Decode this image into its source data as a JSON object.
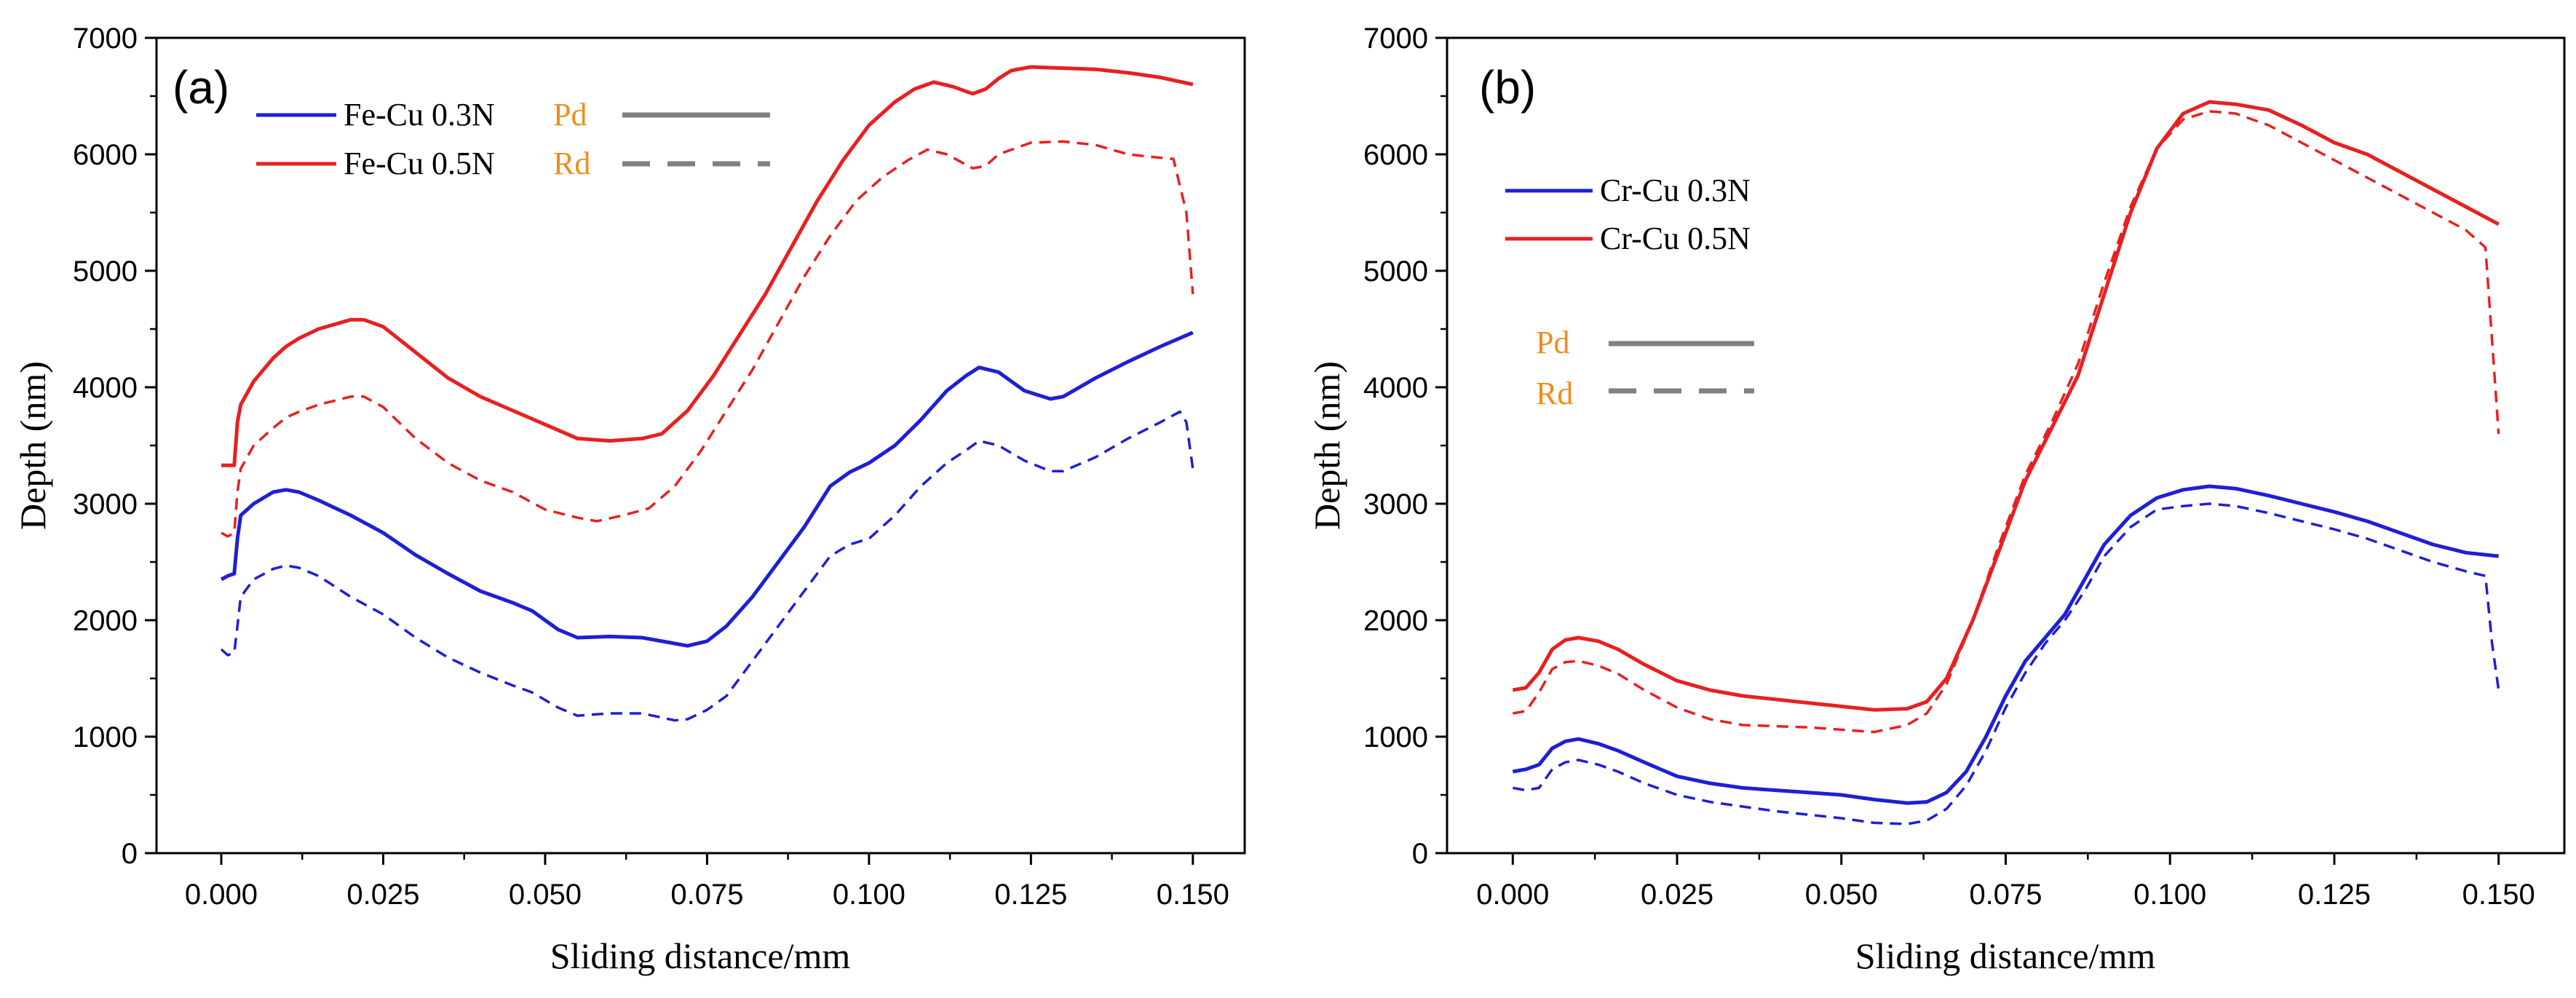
{
  "chart_data": [
    {
      "type": "line",
      "panel_label": "(a)",
      "xlabel": "Sliding distance/mm",
      "ylabel": "Depth (nm)",
      "xlim": [
        -0.01,
        0.158
      ],
      "ylim": [
        0,
        7000
      ],
      "xticks": [
        0.0,
        0.025,
        0.05,
        0.075,
        0.1,
        0.125,
        0.15
      ],
      "xtick_labels": [
        "0.000",
        "0.025",
        "0.050",
        "0.075",
        "0.100",
        "0.125",
        "0.150"
      ],
      "yticks": [
        0,
        1000,
        2000,
        3000,
        4000,
        5000,
        6000,
        7000
      ],
      "ytick_labels": [
        "0",
        "1000",
        "2000",
        "3000",
        "4000",
        "5000",
        "6000",
        "7000"
      ],
      "legend": {
        "position": "top-left",
        "entries": [
          {
            "label": "Fe-Cu 0.3N",
            "color": "#1f1fd6"
          },
          {
            "label": "Fe-Cu 0.5N",
            "color": "#e82020"
          }
        ],
        "styles": [
          {
            "label": "Pd",
            "dash": "solid",
            "color": "#808080"
          },
          {
            "label": "Rd",
            "dash": "dashed",
            "color": "#808080"
          }
        ]
      },
      "series": [
        {
          "name": "Fe-Cu 0.3N Pd",
          "color": "#1f1fd6",
          "dash": "solid",
          "x": [
            0,
            0.001,
            0.002,
            0.0025,
            0.003,
            0.005,
            0.008,
            0.01,
            0.012,
            0.015,
            0.02,
            0.025,
            0.03,
            0.035,
            0.04,
            0.045,
            0.048,
            0.052,
            0.055,
            0.06,
            0.065,
            0.07,
            0.072,
            0.075,
            0.078,
            0.082,
            0.086,
            0.09,
            0.094,
            0.097,
            0.1,
            0.104,
            0.108,
            0.112,
            0.115,
            0.117,
            0.12,
            0.124,
            0.128,
            0.13,
            0.135,
            0.14,
            0.145,
            0.15
          ],
          "y": [
            2350,
            2380,
            2400,
            2700,
            2900,
            3000,
            3100,
            3120,
            3100,
            3030,
            2900,
            2750,
            2560,
            2400,
            2250,
            2150,
            2080,
            1920,
            1850,
            1860,
            1850,
            1800,
            1780,
            1820,
            1950,
            2200,
            2500,
            2800,
            3150,
            3270,
            3350,
            3500,
            3720,
            3970,
            4100,
            4170,
            4130,
            3970,
            3900,
            3920,
            4080,
            4220,
            4350,
            4470
          ]
        },
        {
          "name": "Fe-Cu 0.3N Rd",
          "color": "#1f1fd6",
          "dash": "dashed",
          "x": [
            0,
            0.001,
            0.002,
            0.0025,
            0.003,
            0.005,
            0.008,
            0.01,
            0.012,
            0.015,
            0.02,
            0.025,
            0.03,
            0.035,
            0.04,
            0.045,
            0.048,
            0.052,
            0.055,
            0.06,
            0.065,
            0.07,
            0.072,
            0.075,
            0.078,
            0.082,
            0.086,
            0.09,
            0.094,
            0.097,
            0.1,
            0.104,
            0.108,
            0.112,
            0.115,
            0.117,
            0.12,
            0.124,
            0.128,
            0.13,
            0.135,
            0.14,
            0.145,
            0.148,
            0.149,
            0.15
          ],
          "y": [
            1750,
            1700,
            1720,
            1950,
            2200,
            2350,
            2440,
            2470,
            2450,
            2380,
            2200,
            2050,
            1850,
            1680,
            1550,
            1440,
            1380,
            1250,
            1180,
            1200,
            1200,
            1140,
            1150,
            1230,
            1350,
            1650,
            1950,
            2250,
            2550,
            2650,
            2700,
            2900,
            3150,
            3350,
            3460,
            3540,
            3500,
            3370,
            3280,
            3280,
            3400,
            3560,
            3700,
            3790,
            3700,
            3300
          ]
        },
        {
          "name": "Fe-Cu 0.5N Pd",
          "color": "#e82020",
          "dash": "solid",
          "x": [
            0,
            0.001,
            0.002,
            0.0025,
            0.003,
            0.005,
            0.008,
            0.01,
            0.012,
            0.015,
            0.02,
            0.022,
            0.025,
            0.03,
            0.035,
            0.04,
            0.045,
            0.05,
            0.055,
            0.06,
            0.065,
            0.068,
            0.072,
            0.076,
            0.08,
            0.084,
            0.088,
            0.092,
            0.096,
            0.1,
            0.104,
            0.107,
            0.11,
            0.113,
            0.116,
            0.118,
            0.12,
            0.122,
            0.125,
            0.13,
            0.135,
            0.14,
            0.145,
            0.15
          ],
          "y": [
            3330,
            3330,
            3330,
            3700,
            3850,
            4050,
            4250,
            4350,
            4420,
            4500,
            4580,
            4580,
            4520,
            4300,
            4080,
            3920,
            3800,
            3680,
            3560,
            3540,
            3560,
            3600,
            3800,
            4100,
            4450,
            4800,
            5200,
            5600,
            5950,
            6250,
            6450,
            6560,
            6620,
            6580,
            6520,
            6560,
            6650,
            6720,
            6750,
            6740,
            6730,
            6700,
            6660,
            6600
          ]
        },
        {
          "name": "Fe-Cu 0.5N Rd",
          "color": "#e82020",
          "dash": "dashed",
          "x": [
            0,
            0.001,
            0.002,
            0.0025,
            0.003,
            0.005,
            0.008,
            0.01,
            0.012,
            0.015,
            0.02,
            0.022,
            0.025,
            0.03,
            0.035,
            0.04,
            0.045,
            0.05,
            0.055,
            0.058,
            0.062,
            0.066,
            0.07,
            0.074,
            0.078,
            0.082,
            0.086,
            0.09,
            0.094,
            0.098,
            0.102,
            0.106,
            0.109,
            0.112,
            0.116,
            0.118,
            0.12,
            0.125,
            0.13,
            0.135,
            0.14,
            0.145,
            0.147,
            0.149,
            0.15
          ],
          "y": [
            2750,
            2720,
            2750,
            3100,
            3300,
            3500,
            3650,
            3740,
            3790,
            3850,
            3920,
            3920,
            3830,
            3560,
            3350,
            3200,
            3100,
            2950,
            2880,
            2850,
            2900,
            2960,
            3150,
            3450,
            3800,
            4150,
            4550,
            4950,
            5300,
            5600,
            5800,
            5950,
            6040,
            6000,
            5880,
            5900,
            6000,
            6100,
            6110,
            6080,
            6000,
            5970,
            5960,
            5500,
            4800
          ]
        }
      ]
    },
    {
      "type": "line",
      "panel_label": "(b)",
      "xlabel": "Sliding distance/mm",
      "ylabel": "Depth (nm)",
      "xlim": [
        -0.01,
        0.16
      ],
      "ylim": [
        0,
        7000
      ],
      "xticks": [
        0.0,
        0.025,
        0.05,
        0.075,
        0.1,
        0.125,
        0.15
      ],
      "xtick_labels": [
        "0.000",
        "0.025",
        "0.050",
        "0.075",
        "0.100",
        "0.125",
        "0.150"
      ],
      "yticks": [
        0,
        1000,
        2000,
        3000,
        4000,
        5000,
        6000,
        7000
      ],
      "ytick_labels": [
        "0",
        "1000",
        "2000",
        "3000",
        "4000",
        "5000",
        "6000",
        "7000"
      ],
      "legend": {
        "position": "top-left",
        "entries": [
          {
            "label": "Cr-Cu 0.3N",
            "color": "#1f1fd6"
          },
          {
            "label": "Cr-Cu 0.5N",
            "color": "#e82020"
          }
        ],
        "styles": [
          {
            "label": "Pd",
            "dash": "solid",
            "color": "#808080"
          },
          {
            "label": "Rd",
            "dash": "dashed",
            "color": "#808080"
          }
        ]
      },
      "series": [
        {
          "name": "Cr-Cu 0.3N Pd",
          "color": "#1f1fd6",
          "dash": "solid",
          "x": [
            0,
            0.002,
            0.004,
            0.006,
            0.008,
            0.01,
            0.013,
            0.016,
            0.02,
            0.025,
            0.03,
            0.035,
            0.04,
            0.045,
            0.05,
            0.055,
            0.06,
            0.063,
            0.066,
            0.069,
            0.072,
            0.075,
            0.078,
            0.081,
            0.084,
            0.087,
            0.09,
            0.094,
            0.098,
            0.102,
            0.106,
            0.11,
            0.115,
            0.12,
            0.125,
            0.13,
            0.135,
            0.14,
            0.145,
            0.15
          ],
          "y": [
            700,
            720,
            760,
            900,
            960,
            980,
            940,
            880,
            780,
            660,
            600,
            560,
            540,
            520,
            500,
            460,
            430,
            440,
            520,
            700,
            1000,
            1350,
            1650,
            1850,
            2050,
            2350,
            2650,
            2900,
            3050,
            3120,
            3150,
            3130,
            3070,
            3000,
            2930,
            2850,
            2750,
            2650,
            2580,
            2550
          ]
        },
        {
          "name": "Cr-Cu 0.3N Rd",
          "color": "#1f1fd6",
          "dash": "dashed",
          "x": [
            0,
            0.002,
            0.004,
            0.006,
            0.008,
            0.01,
            0.013,
            0.016,
            0.02,
            0.025,
            0.03,
            0.035,
            0.04,
            0.045,
            0.05,
            0.055,
            0.06,
            0.063,
            0.066,
            0.069,
            0.072,
            0.075,
            0.078,
            0.081,
            0.084,
            0.087,
            0.09,
            0.094,
            0.098,
            0.102,
            0.106,
            0.11,
            0.115,
            0.12,
            0.125,
            0.13,
            0.135,
            0.14,
            0.145,
            0.148,
            0.149,
            0.15
          ],
          "y": [
            560,
            540,
            560,
            720,
            780,
            800,
            760,
            700,
            600,
            500,
            440,
            400,
            360,
            330,
            300,
            260,
            250,
            280,
            380,
            580,
            880,
            1250,
            1550,
            1800,
            2000,
            2250,
            2550,
            2800,
            2950,
            2980,
            3000,
            2980,
            2920,
            2850,
            2780,
            2700,
            2600,
            2500,
            2420,
            2380,
            1800,
            1400
          ]
        },
        {
          "name": "Cr-Cu 0.5N Pd",
          "color": "#e82020",
          "dash": "solid",
          "x": [
            0,
            0.002,
            0.004,
            0.006,
            0.008,
            0.01,
            0.013,
            0.016,
            0.02,
            0.025,
            0.03,
            0.035,
            0.04,
            0.045,
            0.05,
            0.055,
            0.06,
            0.063,
            0.066,
            0.07,
            0.074,
            0.078,
            0.082,
            0.086,
            0.09,
            0.094,
            0.098,
            0.102,
            0.106,
            0.11,
            0.115,
            0.12,
            0.125,
            0.13,
            0.135,
            0.14,
            0.145,
            0.15
          ],
          "y": [
            1400,
            1420,
            1550,
            1750,
            1830,
            1850,
            1820,
            1750,
            1620,
            1480,
            1400,
            1350,
            1320,
            1290,
            1260,
            1230,
            1240,
            1300,
            1500,
            2000,
            2600,
            3200,
            3650,
            4100,
            4800,
            5500,
            6050,
            6350,
            6450,
            6430,
            6380,
            6250,
            6100,
            6000,
            5850,
            5700,
            5550,
            5400
          ]
        },
        {
          "name": "Cr-Cu 0.5N Rd",
          "color": "#e82020",
          "dash": "dashed",
          "x": [
            0,
            0.002,
            0.004,
            0.006,
            0.008,
            0.01,
            0.013,
            0.016,
            0.02,
            0.025,
            0.03,
            0.035,
            0.04,
            0.045,
            0.05,
            0.055,
            0.06,
            0.063,
            0.066,
            0.07,
            0.074,
            0.078,
            0.082,
            0.086,
            0.09,
            0.094,
            0.098,
            0.102,
            0.106,
            0.11,
            0.115,
            0.12,
            0.125,
            0.13,
            0.135,
            0.14,
            0.145,
            0.148,
            0.149,
            0.15
          ],
          "y": [
            1200,
            1220,
            1380,
            1580,
            1640,
            1650,
            1610,
            1540,
            1400,
            1250,
            1150,
            1100,
            1090,
            1080,
            1060,
            1040,
            1100,
            1200,
            1450,
            2000,
            2650,
            3250,
            3700,
            4200,
            4900,
            5550,
            6050,
            6300,
            6370,
            6350,
            6250,
            6100,
            5950,
            5800,
            5650,
            5500,
            5350,
            5200,
            4400,
            3600
          ]
        }
      ]
    }
  ]
}
